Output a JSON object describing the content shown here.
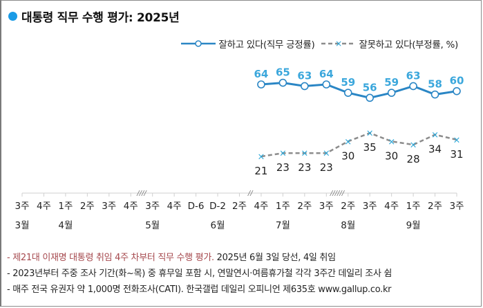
{
  "title": "대통령 직무 수행 평가: 2025년",
  "legend": {
    "approve": "잘하고 있다(직무 긍정률)",
    "disapprove": "잘못하고 있다(부정률, %)"
  },
  "colors": {
    "approve": "#2a86c5",
    "approve_label": "#3ba7dc",
    "disapprove_line": "#8c8c8c",
    "disapprove_marker": "#2aa6d8",
    "title_dot": "#1a9be6",
    "note_red": "#a5484d",
    "axis": "#cfcfcf"
  },
  "chart_data": {
    "type": "line",
    "title": "대통령 직무 수행 평가: 2025년",
    "xlabel": "",
    "ylabel": "%",
    "x_week_labels": [
      "3주",
      "4주",
      "1주",
      "2주",
      "3주",
      "4주",
      "3주",
      "4주",
      "D-6",
      "D-2",
      "2주",
      "4주",
      "1주",
      "2주",
      "3주",
      "2주",
      "3주",
      "4주",
      "1주",
      "2주",
      "3주"
    ],
    "x_month_labels": [
      {
        "index": 0,
        "label": "3월"
      },
      {
        "index": 2,
        "label": "4월"
      },
      {
        "index": 6,
        "label": "5월"
      },
      {
        "index": 9,
        "label": "6월"
      },
      {
        "index": 12,
        "label": "7월"
      },
      {
        "index": 15,
        "label": "8월"
      },
      {
        "index": 18,
        "label": "9월"
      }
    ],
    "axis_breaks": [
      {
        "between": [
          5,
          6
        ],
        "mark": "////"
      },
      {
        "between": [
          10,
          11
        ],
        "mark": "//"
      },
      {
        "between": [
          14,
          15
        ],
        "mark": "//////"
      }
    ],
    "series": [
      {
        "name": "잘하고 있다(직무 긍정률)",
        "start_index": 11,
        "values": [
          64,
          65,
          63,
          64,
          59,
          56,
          59,
          63,
          58,
          60
        ]
      },
      {
        "name": "잘못하고 있다(부정률, %)",
        "start_index": 11,
        "values": [
          21,
          23,
          23,
          23,
          30,
          35,
          30,
          28,
          34,
          31
        ]
      }
    ],
    "grid": false,
    "legend_position": "top-right"
  },
  "notes": [
    {
      "red": "- 제21대 이재명 대통령 취임 4주 차부터 직무 수행 평가.",
      "plain": " 2025년 6월 3일 당선, 4일 취임"
    },
    {
      "red": "",
      "plain": "- 2023년부터 주중 조사 기간(화~목) 중 휴무일 포함 시, 연말연시·여름휴가철 각각 3주간 데일리 조사 쉼"
    },
    {
      "red": "",
      "plain": "- 매주 전국 유권자 약 1,000명 전화조사(CATI). 한국갤럽 데일리 오피니언 제635호 www.gallup.co.kr"
    }
  ]
}
